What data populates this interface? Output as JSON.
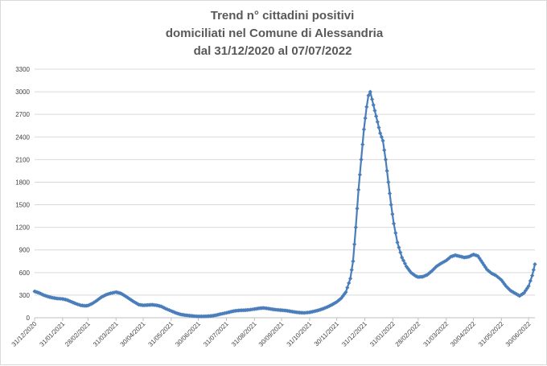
{
  "chart_data": {
    "type": "line",
    "title_lines": [
      "Trend n° cittadini positivi",
      "domiciliati nel Comune di Alessandria",
      "dal 31/12/2020 al 07/07/2022"
    ],
    "xlabel": "",
    "ylabel": "",
    "ylim": [
      0,
      3300
    ],
    "y_ticks": [
      "0",
      "300",
      "600",
      "900",
      "1200",
      "1500",
      "1800",
      "2100",
      "2400",
      "2700",
      "3000",
      "3300"
    ],
    "x_ticks": [
      "31/12/2020",
      "31/01/2021",
      "28/02/2021",
      "31/03/2021",
      "30/04/2021",
      "31/05/2021",
      "30/06/2021",
      "31/07/2021",
      "31/08/2021",
      "30/09/2021",
      "31/10/2021",
      "30/11/2021",
      "31/12/2021",
      "31/01/2022",
      "28/02/2022",
      "31/03/2022",
      "30/04/2022",
      "31/05/2022",
      "30/06/2022"
    ],
    "grid": true,
    "legend": "none",
    "series": [
      {
        "color": "#4a7ebb",
        "marker": "diamond",
        "points": [
          [
            "2020-12-31",
            350
          ],
          [
            "2021-01-05",
            330
          ],
          [
            "2021-01-10",
            300
          ],
          [
            "2021-01-15",
            280
          ],
          [
            "2021-01-20",
            265
          ],
          [
            "2021-01-25",
            255
          ],
          [
            "2021-01-31",
            250
          ],
          [
            "2021-02-05",
            235
          ],
          [
            "2021-02-10",
            210
          ],
          [
            "2021-02-15",
            185
          ],
          [
            "2021-02-20",
            165
          ],
          [
            "2021-02-25",
            158
          ],
          [
            "2021-02-28",
            162
          ],
          [
            "2021-03-05",
            190
          ],
          [
            "2021-03-10",
            230
          ],
          [
            "2021-03-15",
            275
          ],
          [
            "2021-03-20",
            305
          ],
          [
            "2021-03-25",
            325
          ],
          [
            "2021-03-31",
            340
          ],
          [
            "2021-04-05",
            325
          ],
          [
            "2021-04-10",
            290
          ],
          [
            "2021-04-15",
            250
          ],
          [
            "2021-04-20",
            210
          ],
          [
            "2021-04-25",
            175
          ],
          [
            "2021-04-30",
            165
          ],
          [
            "2021-05-05",
            168
          ],
          [
            "2021-05-10",
            172
          ],
          [
            "2021-05-15",
            165
          ],
          [
            "2021-05-20",
            150
          ],
          [
            "2021-05-25",
            120
          ],
          [
            "2021-05-31",
            90
          ],
          [
            "2021-06-05",
            65
          ],
          [
            "2021-06-10",
            45
          ],
          [
            "2021-06-15",
            35
          ],
          [
            "2021-06-20",
            28
          ],
          [
            "2021-06-25",
            22
          ],
          [
            "2021-06-30",
            18
          ],
          [
            "2021-07-05",
            18
          ],
          [
            "2021-07-10",
            20
          ],
          [
            "2021-07-15",
            25
          ],
          [
            "2021-07-20",
            35
          ],
          [
            "2021-07-25",
            50
          ],
          [
            "2021-07-31",
            65
          ],
          [
            "2021-08-05",
            80
          ],
          [
            "2021-08-10",
            92
          ],
          [
            "2021-08-15",
            98
          ],
          [
            "2021-08-20",
            100
          ],
          [
            "2021-08-25",
            105
          ],
          [
            "2021-08-31",
            115
          ],
          [
            "2021-09-05",
            125
          ],
          [
            "2021-09-10",
            130
          ],
          [
            "2021-09-15",
            122
          ],
          [
            "2021-09-20",
            112
          ],
          [
            "2021-09-25",
            105
          ],
          [
            "2021-09-30",
            100
          ],
          [
            "2021-10-05",
            95
          ],
          [
            "2021-10-10",
            85
          ],
          [
            "2021-10-15",
            75
          ],
          [
            "2021-10-20",
            68
          ],
          [
            "2021-10-25",
            65
          ],
          [
            "2021-10-31",
            72
          ],
          [
            "2021-11-05",
            85
          ],
          [
            "2021-11-10",
            100
          ],
          [
            "2021-11-15",
            120
          ],
          [
            "2021-11-20",
            145
          ],
          [
            "2021-11-25",
            175
          ],
          [
            "2021-11-30",
            210
          ],
          [
            "2021-12-05",
            260
          ],
          [
            "2021-12-10",
            340
          ],
          [
            "2021-12-15",
            520
          ],
          [
            "2021-12-18",
            750
          ],
          [
            "2021-12-21",
            1200
          ],
          [
            "2021-12-24",
            1700
          ],
          [
            "2021-12-27",
            2100
          ],
          [
            "2021-12-30",
            2500
          ],
          [
            "2022-01-02",
            2800
          ],
          [
            "2022-01-04",
            2950
          ],
          [
            "2022-01-06",
            3000
          ],
          [
            "2022-01-08",
            2900
          ],
          [
            "2022-01-11",
            2750
          ],
          [
            "2022-01-14",
            2600
          ],
          [
            "2022-01-17",
            2450
          ],
          [
            "2022-01-20",
            2350
          ],
          [
            "2022-01-23",
            2100
          ],
          [
            "2022-01-26",
            1800
          ],
          [
            "2022-01-29",
            1500
          ],
          [
            "2022-02-01",
            1250
          ],
          [
            "2022-02-05",
            1000
          ],
          [
            "2022-02-10",
            800
          ],
          [
            "2022-02-15",
            680
          ],
          [
            "2022-02-20",
            600
          ],
          [
            "2022-02-25",
            555
          ],
          [
            "2022-02-28",
            540
          ],
          [
            "2022-03-05",
            545
          ],
          [
            "2022-03-10",
            570
          ],
          [
            "2022-03-15",
            620
          ],
          [
            "2022-03-20",
            680
          ],
          [
            "2022-03-25",
            720
          ],
          [
            "2022-03-31",
            760
          ],
          [
            "2022-04-05",
            810
          ],
          [
            "2022-04-10",
            830
          ],
          [
            "2022-04-15",
            815
          ],
          [
            "2022-04-20",
            800
          ],
          [
            "2022-04-25",
            810
          ],
          [
            "2022-04-30",
            840
          ],
          [
            "2022-05-05",
            820
          ],
          [
            "2022-05-10",
            730
          ],
          [
            "2022-05-15",
            640
          ],
          [
            "2022-05-20",
            590
          ],
          [
            "2022-05-25",
            560
          ],
          [
            "2022-05-31",
            500
          ],
          [
            "2022-06-05",
            420
          ],
          [
            "2022-06-10",
            360
          ],
          [
            "2022-06-15",
            325
          ],
          [
            "2022-06-20",
            290
          ],
          [
            "2022-06-25",
            330
          ],
          [
            "2022-06-30",
            420
          ],
          [
            "2022-07-04",
            560
          ],
          [
            "2022-07-07",
            710
          ]
        ]
      }
    ]
  }
}
